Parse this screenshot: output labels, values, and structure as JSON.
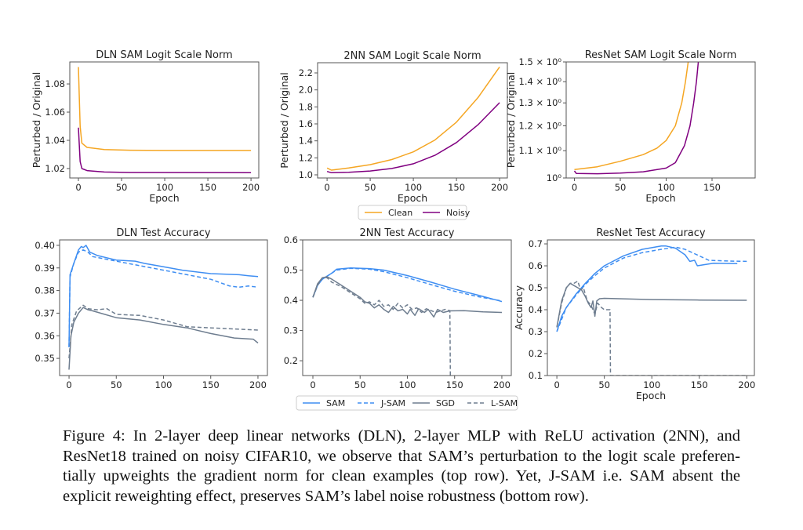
{
  "colors": {
    "clean": "#f5a623",
    "noisy": "#800080",
    "sam": "#3f8ef2",
    "sgd": "#6e7d8f"
  },
  "legends": {
    "top": [
      {
        "label": "Clean",
        "color": "#f5a623",
        "dash": false
      },
      {
        "label": "Noisy",
        "color": "#800080",
        "dash": false
      }
    ],
    "bottom": [
      {
        "label": "SAM",
        "color": "#3f8ef2",
        "dash": false
      },
      {
        "label": "J-SAM",
        "color": "#3f8ef2",
        "dash": true
      },
      {
        "label": "SGD",
        "color": "#6e7d8f",
        "dash": false
      },
      {
        "label": "L-SAM",
        "color": "#6e7d8f",
        "dash": true
      }
    ]
  },
  "chart_data": [
    {
      "type": "line",
      "title": "DLN SAM Logit Scale Norm",
      "xlabel": "Epoch",
      "ylabel": "Perturbed / Original",
      "xlim": [
        -10,
        209
      ],
      "ylim": [
        1.0133,
        1.0956
      ],
      "yscale": "linear",
      "grid": false,
      "xticks": [
        0,
        50,
        100,
        150,
        200
      ],
      "yticks": [
        1.02,
        1.04,
        1.06,
        1.08
      ],
      "ytick_labels": [
        "1.02",
        "1.04",
        "1.06",
        "1.08"
      ],
      "series": [
        {
          "name": "Clean",
          "color": "#f5a623",
          "dash": false,
          "x": [
            0,
            2,
            4,
            10,
            30,
            60,
            100,
            200
          ],
          "y": [
            1.092,
            1.05,
            1.038,
            1.035,
            1.0335,
            1.033,
            1.0328,
            1.0328
          ]
        },
        {
          "name": "Noisy",
          "color": "#800080",
          "dash": false,
          "x": [
            0,
            2,
            4,
            10,
            30,
            60,
            200
          ],
          "y": [
            1.049,
            1.025,
            1.02,
            1.0185,
            1.0175,
            1.0172,
            1.017
          ]
        }
      ]
    },
    {
      "type": "line",
      "title": "2NN SAM Logit Scale Norm",
      "xlabel": "Epoch",
      "ylabel": "Perturbed / Original",
      "xlim": [
        -11,
        209
      ],
      "ylim": [
        0.963,
        2.32
      ],
      "yscale": "linear",
      "grid": false,
      "xticks": [
        0,
        50,
        100,
        150,
        200
      ],
      "yticks": [
        1.0,
        1.2,
        1.4,
        1.6,
        1.8,
        2.0,
        2.2
      ],
      "ytick_labels": [
        "1.0",
        "1.2",
        "1.4",
        "1.6",
        "1.8",
        "2.0",
        "2.2"
      ],
      "series": [
        {
          "name": "Clean",
          "color": "#f5a623",
          "dash": false,
          "x": [
            0,
            5,
            25,
            50,
            75,
            100,
            125,
            150,
            175,
            200
          ],
          "y": [
            1.08,
            1.055,
            1.08,
            1.12,
            1.18,
            1.27,
            1.41,
            1.62,
            1.91,
            2.27
          ]
        },
        {
          "name": "Noisy",
          "color": "#800080",
          "dash": false,
          "x": [
            0,
            5,
            25,
            50,
            75,
            100,
            125,
            150,
            175,
            200
          ],
          "y": [
            1.04,
            1.025,
            1.03,
            1.045,
            1.075,
            1.13,
            1.23,
            1.38,
            1.59,
            1.85
          ]
        }
      ]
    },
    {
      "type": "line",
      "title": "ResNet SAM Logit Scale Norm",
      "xlabel": "Epoch",
      "ylabel": "Perturbed / Original",
      "xlim": [
        -9,
        197
      ],
      "ylim": [
        1.0,
        1.5
      ],
      "yscale": "log",
      "grid": false,
      "xticks": [
        0,
        50,
        100,
        150
      ],
      "yticks": [
        1.0,
        1.1,
        1.2,
        1.3,
        1.4,
        1.5
      ],
      "ytick_labels": [
        "10⁰",
        "1.1 × 10⁰",
        "1.2 × 10⁰",
        "1.3 × 10⁰",
        "1.4 × 10⁰",
        "1.5 × 10⁰"
      ],
      "series": [
        {
          "name": "Clean",
          "color": "#f5a623",
          "dash": false,
          "x": [
            0,
            25,
            50,
            75,
            90,
            100,
            110,
            117,
            121,
            124
          ],
          "y": [
            1.03,
            1.04,
            1.06,
            1.085,
            1.11,
            1.14,
            1.2,
            1.3,
            1.4,
            1.5
          ]
        },
        {
          "name": "Noisy",
          "color": "#800080",
          "dash": false,
          "x": [
            0,
            2,
            25,
            50,
            75,
            100,
            110,
            120,
            126,
            130,
            133,
            135
          ],
          "y": [
            1.025,
            1.016,
            1.015,
            1.017,
            1.022,
            1.035,
            1.055,
            1.12,
            1.2,
            1.3,
            1.4,
            1.5
          ]
        }
      ]
    },
    {
      "type": "line",
      "title": "DLN Test Accuracy",
      "xlabel": "",
      "ylabel": "",
      "xlim": [
        -10,
        210
      ],
      "ylim": [
        0.3424,
        0.4024
      ],
      "yscale": "linear",
      "grid": false,
      "xticks": [
        0,
        50,
        100,
        150,
        200
      ],
      "yticks": [
        0.35,
        0.36,
        0.37,
        0.38,
        0.39,
        0.4
      ],
      "ytick_labels": [
        "0.35",
        "0.36",
        "0.37",
        "0.38",
        "0.39",
        "0.40"
      ],
      "series": [
        {
          "name": "SAM",
          "color": "#3f8ef2",
          "dash": false,
          "x": [
            0,
            1,
            5,
            10,
            13,
            15,
            18,
            22,
            30,
            40,
            50,
            70,
            80,
            100,
            120,
            150,
            180,
            190,
            200
          ],
          "y": [
            0.355,
            0.387,
            0.392,
            0.398,
            0.3995,
            0.399,
            0.4,
            0.397,
            0.3955,
            0.3945,
            0.3935,
            0.393,
            0.392,
            0.3905,
            0.389,
            0.3875,
            0.387,
            0.3865,
            0.3862
          ]
        },
        {
          "name": "J-SAM",
          "color": "#3f8ef2",
          "dash": true,
          "x": [
            0,
            1,
            5,
            10,
            15,
            20,
            25,
            50,
            75,
            100,
            125,
            150,
            170,
            180,
            190,
            200
          ],
          "y": [
            0.355,
            0.386,
            0.392,
            0.397,
            0.398,
            0.397,
            0.395,
            0.393,
            0.391,
            0.389,
            0.387,
            0.385,
            0.382,
            0.3815,
            0.382,
            0.3815
          ]
        },
        {
          "name": "SGD",
          "color": "#6e7d8f",
          "dash": false,
          "x": [
            0,
            2,
            5,
            10,
            15,
            20,
            25,
            50,
            75,
            100,
            125,
            150,
            175,
            195,
            200
          ],
          "y": [
            0.345,
            0.36,
            0.366,
            0.37,
            0.3725,
            0.3715,
            0.371,
            0.368,
            0.367,
            0.365,
            0.3635,
            0.361,
            0.359,
            0.3585,
            0.3568
          ]
        },
        {
          "name": "L-SAM",
          "color": "#6e7d8f",
          "dash": true,
          "x": [
            0,
            3,
            8,
            15,
            20,
            30,
            40,
            50,
            75,
            100,
            125,
            150,
            175,
            200
          ],
          "y": [
            0.35,
            0.365,
            0.371,
            0.3735,
            0.372,
            0.3715,
            0.372,
            0.3695,
            0.369,
            0.367,
            0.364,
            0.3635,
            0.363,
            0.3625
          ]
        }
      ]
    },
    {
      "type": "line",
      "title": "2NN Test Accuracy",
      "xlabel": "",
      "ylabel": "",
      "xlim": [
        -10.8,
        210
      ],
      "ylim": [
        0.151,
        0.6
      ],
      "yscale": "linear",
      "grid": false,
      "xticks": [
        0,
        50,
        100,
        150,
        200
      ],
      "yticks": [
        0.2,
        0.3,
        0.4,
        0.5,
        0.6
      ],
      "ytick_labels": [
        "0.2",
        "0.3",
        "0.4",
        "0.5",
        "0.6"
      ],
      "series": [
        {
          "name": "SAM",
          "color": "#3f8ef2",
          "dash": false,
          "x": [
            0,
            5,
            10,
            20,
            25,
            40,
            60,
            75,
            100,
            125,
            150,
            175,
            200
          ],
          "y": [
            0.41,
            0.45,
            0.47,
            0.49,
            0.503,
            0.507,
            0.505,
            0.5,
            0.482,
            0.46,
            0.437,
            0.417,
            0.396
          ]
        },
        {
          "name": "J-SAM",
          "color": "#3f8ef2",
          "dash": true,
          "x": [
            0,
            5,
            10,
            20,
            25,
            40,
            60,
            75,
            100,
            125,
            150,
            175,
            200
          ],
          "y": [
            0.41,
            0.45,
            0.47,
            0.49,
            0.5,
            0.506,
            0.503,
            0.495,
            0.475,
            0.452,
            0.43,
            0.412,
            0.398
          ]
        },
        {
          "name": "SGD",
          "color": "#6e7d8f",
          "dash": false,
          "x": [
            0,
            5,
            10,
            15,
            20,
            30,
            40,
            50,
            55,
            60,
            65,
            70,
            75,
            80,
            85,
            90,
            95,
            100,
            103,
            108,
            112,
            118,
            122,
            128,
            132,
            138,
            145,
            160,
            180,
            200
          ],
          "y": [
            0.41,
            0.455,
            0.475,
            0.478,
            0.47,
            0.45,
            0.43,
            0.41,
            0.395,
            0.39,
            0.375,
            0.385,
            0.37,
            0.36,
            0.38,
            0.365,
            0.37,
            0.355,
            0.37,
            0.35,
            0.372,
            0.36,
            0.37,
            0.345,
            0.37,
            0.36,
            0.365,
            0.366,
            0.362,
            0.36
          ]
        },
        {
          "name": "L-SAM",
          "color": "#6e7d8f",
          "dash": true,
          "x": [
            0,
            5,
            10,
            15,
            20,
            30,
            40,
            50,
            55,
            60,
            65,
            70,
            75,
            80,
            85,
            90,
            95,
            100,
            105,
            110,
            115,
            120,
            130,
            140,
            145,
            145.5
          ],
          "y": [
            0.41,
            0.45,
            0.475,
            0.475,
            0.46,
            0.445,
            0.425,
            0.405,
            0.39,
            0.395,
            0.385,
            0.4,
            0.38,
            0.385,
            0.37,
            0.39,
            0.375,
            0.385,
            0.37,
            0.375,
            0.36,
            0.372,
            0.36,
            0.37,
            0.366,
            0.151
          ]
        }
      ]
    },
    {
      "type": "line",
      "title": "ResNet Test Accuracy",
      "xlabel": "Epoch",
      "ylabel": "Accuracy",
      "xlim": [
        -10,
        208
      ],
      "ylim": [
        0.1,
        0.718
      ],
      "yscale": "linear",
      "grid": false,
      "xticks": [
        0,
        50,
        100,
        150,
        200
      ],
      "yticks": [
        0.1,
        0.2,
        0.3,
        0.4,
        0.5,
        0.6,
        0.7
      ],
      "ytick_labels": [
        "0.1",
        "0.2",
        "0.3",
        "0.4",
        "0.5",
        "0.6",
        "0.7"
      ],
      "series": [
        {
          "name": "SAM",
          "color": "#3f8ef2",
          "dash": false,
          "x": [
            0,
            5,
            10,
            20,
            30,
            40,
            50,
            70,
            90,
            110,
            115,
            125,
            135,
            140,
            145,
            148,
            155,
            165,
            190
          ],
          "y": [
            0.3,
            0.37,
            0.41,
            0.47,
            0.52,
            0.565,
            0.6,
            0.645,
            0.675,
            0.69,
            0.69,
            0.68,
            0.65,
            0.62,
            0.625,
            0.6,
            0.605,
            0.612,
            0.61
          ]
        },
        {
          "name": "J-SAM",
          "color": "#3f8ef2",
          "dash": true,
          "x": [
            0,
            10,
            20,
            30,
            40,
            50,
            70,
            90,
            110,
            125,
            135,
            150,
            160,
            180,
            200
          ],
          "y": [
            0.3,
            0.41,
            0.465,
            0.515,
            0.555,
            0.59,
            0.635,
            0.66,
            0.675,
            0.685,
            0.675,
            0.645,
            0.625,
            0.622,
            0.62
          ]
        },
        {
          "name": "SGD",
          "color": "#6e7d8f",
          "dash": false,
          "x": [
            0,
            5,
            10,
            14,
            18,
            22,
            26,
            30,
            33,
            36,
            38,
            40,
            42,
            45,
            50,
            100,
            150,
            200
          ],
          "y": [
            0.32,
            0.44,
            0.5,
            0.52,
            0.51,
            0.5,
            0.49,
            0.46,
            0.43,
            0.41,
            0.44,
            0.37,
            0.44,
            0.45,
            0.452,
            0.446,
            0.444,
            0.443
          ]
        },
        {
          "name": "L-SAM",
          "color": "#6e7d8f",
          "dash": true,
          "x": [
            0,
            5,
            10,
            14,
            18,
            22,
            25,
            28,
            32,
            36,
            40,
            43,
            47,
            50,
            56,
            56.5,
            200
          ],
          "y": [
            0.32,
            0.43,
            0.5,
            0.52,
            0.52,
            0.53,
            0.49,
            0.5,
            0.44,
            0.42,
            0.38,
            0.43,
            0.41,
            0.4,
            0.4,
            0.1,
            0.1
          ]
        }
      ]
    }
  ],
  "caption": {
    "lines": [
      "Figure 4: In 2-layer deep linear networks (DLN), 2-layer MLP with ReLU activation (2NN), and",
      "ResNet18 trained on noisy CIFAR10, we observe that SAM’s perturbation to the logit scale preferen-",
      "tially upweights the gradient norm for clean examples (top row). Yet, J-SAM i.e. SAM absent the",
      "explicit reweighting effect, preserves SAM’s label noise robustness (bottom row)."
    ]
  }
}
